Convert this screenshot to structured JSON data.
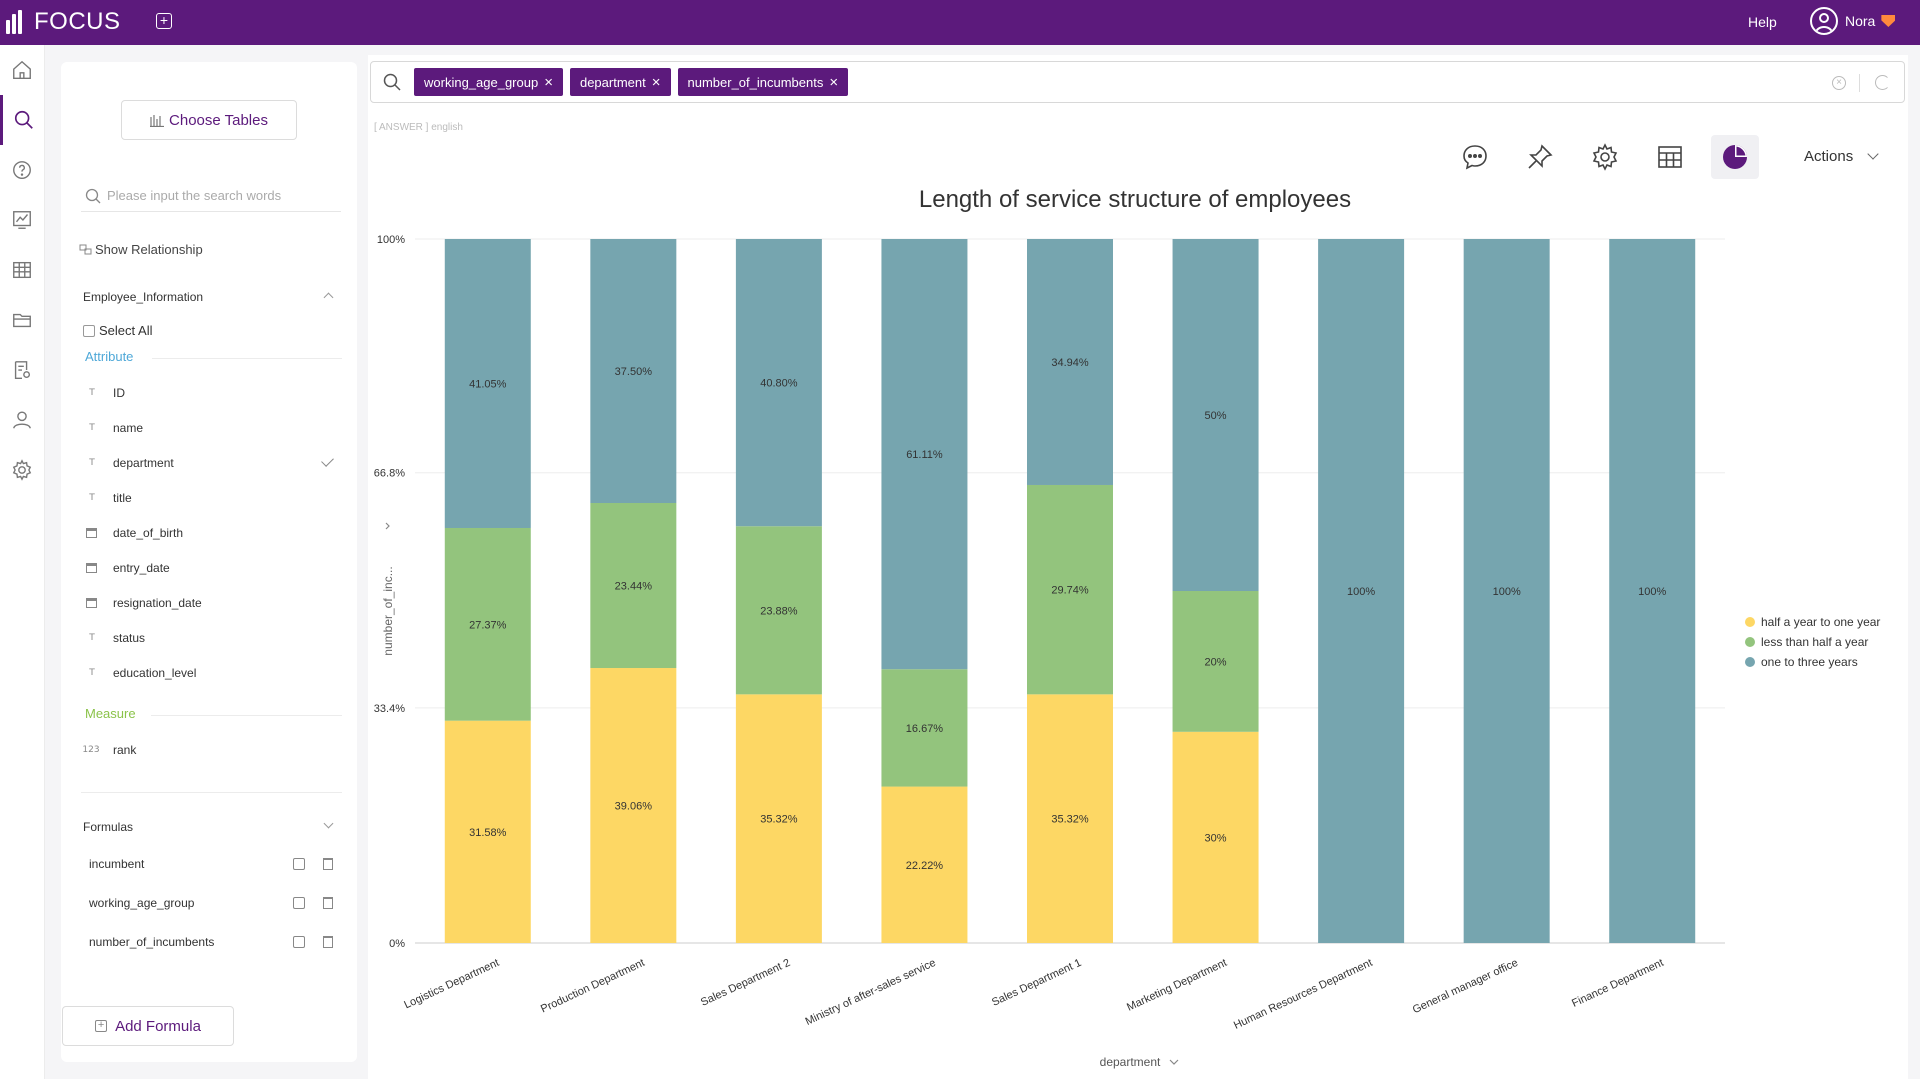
{
  "app": {
    "logo_text": "FOCUS",
    "help": "Help",
    "user_name": "Nora"
  },
  "nav": [
    "home-icon",
    "search-icon",
    "question-icon",
    "dashboard-icon",
    "table-icon",
    "folder-icon",
    "report-settings-icon",
    "user-icon",
    "gear-icon"
  ],
  "side": {
    "choose_tables": "Choose Tables",
    "search_placeholder": "Please input the search words",
    "show_relationship": "Show Relationship",
    "table_name": "Employee_Information",
    "select_all": "Select All",
    "attribute_label": "Attribute",
    "attributes": [
      {
        "type": "text",
        "name": "ID"
      },
      {
        "type": "text",
        "name": "name"
      },
      {
        "type": "text",
        "name": "department"
      },
      {
        "type": "text",
        "name": "title"
      },
      {
        "type": "date",
        "name": "date_of_birth"
      },
      {
        "type": "date",
        "name": "entry_date"
      },
      {
        "type": "date",
        "name": "resignation_date"
      },
      {
        "type": "text",
        "name": "status"
      },
      {
        "type": "text",
        "name": "education_level"
      }
    ],
    "measure_label": "Measure",
    "measures": [
      {
        "type": "123",
        "name": "rank"
      }
    ],
    "formulas_label": "Formulas",
    "formulas": [
      "incumbent",
      "working_age_group",
      "number_of_incumbents"
    ],
    "add_formula": "Add Formula"
  },
  "search": {
    "chips": [
      "working_age_group",
      "department",
      "number_of_incumbents"
    ],
    "answer_tag": "[ ANSWER ] english"
  },
  "toolbar": {
    "actions": "Actions"
  },
  "colors": {
    "brand": "#5c1a7c",
    "half_year_to_one": "#fdd764",
    "less_than_half": "#93c47d",
    "one_to_three": "#76a5af"
  },
  "chart_data": {
    "type": "bar",
    "stacked": "percent",
    "title": "Length of service structure of employees",
    "xlabel": "department",
    "ylabel": "number_of_inc...",
    "yticks": [
      "100%",
      "66.8%",
      "33.4%",
      "0%"
    ],
    "ytick_values": [
      100,
      66.8,
      33.4,
      0
    ],
    "ylim": [
      0,
      100
    ],
    "legend_position": "right",
    "categories": [
      "Logistics Department",
      "Production Department",
      "Sales Department 2",
      "Ministry of after-sales service",
      "Sales Department 1",
      "Marketing Department",
      "Human Resources Department",
      "General manager office",
      "Finance Department"
    ],
    "series": [
      {
        "name": "half a year to one year",
        "color": "#fdd764",
        "values": [
          31.58,
          39.06,
          35.32,
          22.22,
          35.32,
          30,
          0,
          0,
          0
        ],
        "labels": [
          "31.58%",
          "39.06%",
          "35.32%",
          "22.22%",
          "35.32%",
          "30%",
          "",
          "",
          ""
        ]
      },
      {
        "name": "less than half a year",
        "color": "#93c47d",
        "values": [
          27.37,
          23.44,
          23.88,
          16.67,
          29.74,
          20,
          0,
          0,
          0
        ],
        "labels": [
          "27.37%",
          "23.44%",
          "23.88%",
          "16.67%",
          "29.74%",
          "20%",
          "",
          "",
          ""
        ]
      },
      {
        "name": "one to three years",
        "color": "#76a5af",
        "values": [
          41.05,
          37.5,
          40.8,
          61.11,
          34.94,
          50,
          100,
          100,
          100
        ],
        "labels": [
          "41.05%",
          "37.50%",
          "40.80%",
          "61.11%",
          "34.94%",
          "50%",
          "100%",
          "100%",
          "100%"
        ]
      }
    ]
  }
}
